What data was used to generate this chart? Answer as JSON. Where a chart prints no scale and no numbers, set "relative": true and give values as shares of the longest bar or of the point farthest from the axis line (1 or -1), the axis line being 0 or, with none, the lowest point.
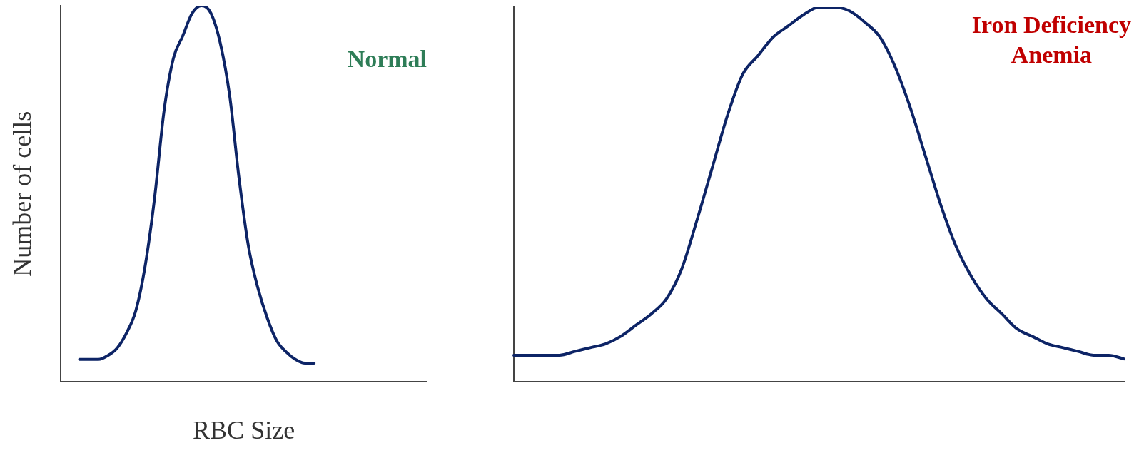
{
  "chart_data": [
    {
      "type": "line",
      "xlabel": "RBC Size",
      "ylabel": "Number of cells",
      "relative": true,
      "grid": false,
      "legend": false,
      "marker": "none",
      "annotations": [
        "Normal"
      ],
      "categories": [
        null,
        null,
        null,
        null,
        null,
        null,
        null,
        null,
        null,
        null,
        null,
        null,
        null,
        null,
        null,
        null,
        null,
        null,
        null,
        null,
        null,
        null,
        null,
        null,
        null,
        null,
        null,
        null,
        null,
        null,
        null,
        null,
        null,
        null,
        null,
        null,
        null,
        null,
        null,
        null
      ],
      "series": [
        {
          "color": "#0d2466",
          "values": [
            null,
            null,
            0.06,
            0.06,
            0.06,
            0.07,
            0.09,
            0.13,
            0.19,
            0.31,
            0.49,
            0.72,
            0.86,
            0.92,
            0.98,
            1,
            0.98,
            0.9,
            0.76,
            0.54,
            0.36,
            0.25,
            0.17,
            0.11,
            0.08,
            0.06,
            0.05,
            0.05,
            null,
            null,
            null,
            null,
            null,
            null,
            null,
            null,
            null,
            null,
            null,
            null
          ]
        }
      ]
    },
    {
      "type": "line",
      "relative": true,
      "grid": false,
      "legend": false,
      "marker": "none",
      "annotations": [
        "Iron Deficiency Anemia"
      ],
      "categories": [
        null,
        null,
        null,
        null,
        null,
        null,
        null,
        null,
        null,
        null,
        null,
        null,
        null,
        null,
        null,
        null,
        null,
        null,
        null,
        null,
        null,
        null,
        null,
        null,
        null,
        null,
        null,
        null,
        null,
        null,
        null,
        null,
        null,
        null,
        null,
        null,
        null,
        null,
        null,
        null,
        null
      ],
      "series": [
        {
          "color": "#0d2466",
          "values": [
            0.07,
            0.07,
            0.07,
            0.07,
            0.08,
            0.09,
            0.1,
            0.12,
            0.15,
            0.18,
            0.22,
            0.3,
            0.43,
            0.57,
            0.71,
            0.82,
            0.87,
            0.92,
            0.95,
            0.98,
            1,
            1,
            0.99,
            0.96,
            0.92,
            0.84,
            0.73,
            0.6,
            0.47,
            0.36,
            0.28,
            0.22,
            0.18,
            0.14,
            0.12,
            0.1,
            0.09,
            0.08,
            0.07,
            0.07,
            0.06
          ]
        }
      ]
    }
  ]
}
